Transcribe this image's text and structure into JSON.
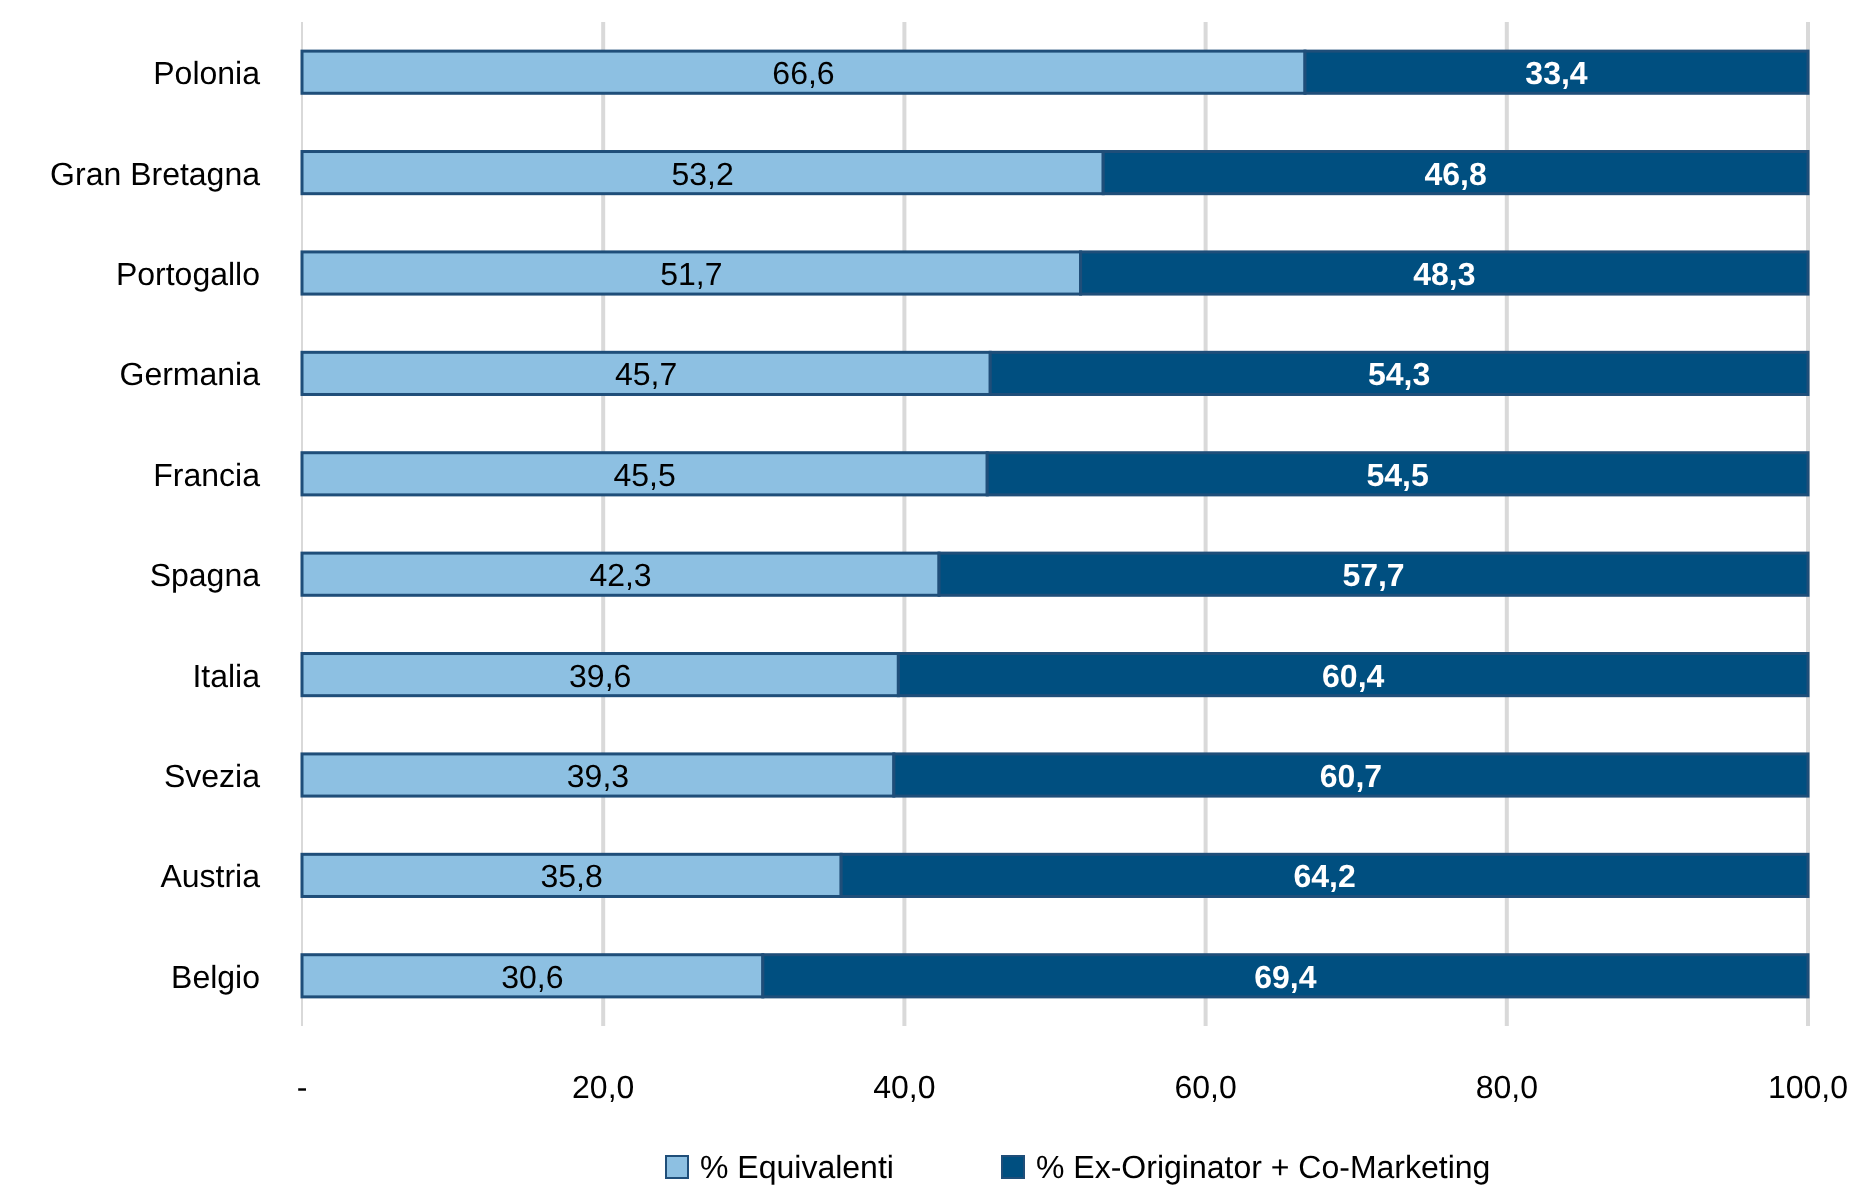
{
  "chart_data": {
    "type": "bar",
    "orientation": "horizontal",
    "stacked": true,
    "categories": [
      "Polonia",
      "Gran Bretagna",
      "Portogallo",
      "Germania",
      "Francia",
      "Spagna",
      "Italia",
      "Svezia",
      "Austria",
      "Belgio"
    ],
    "series": [
      {
        "name": "% Equivalenti",
        "color": "#8dc0e2",
        "values": [
          66.6,
          53.2,
          51.7,
          45.7,
          45.5,
          42.3,
          39.6,
          39.3,
          35.8,
          30.6
        ],
        "value_labels": [
          "66,6",
          "53,2",
          "51,7",
          "45,7",
          "45,5",
          "42,3",
          "39,6",
          "39,3",
          "35,8",
          "30,6"
        ]
      },
      {
        "name": "% Ex-Originator + Co-Marketing",
        "color": "#004f80",
        "values": [
          33.4,
          46.8,
          48.3,
          54.3,
          54.5,
          57.7,
          60.4,
          60.7,
          64.2,
          69.4
        ],
        "value_labels": [
          "33,4",
          "46,8",
          "48,3",
          "54,3",
          "54,5",
          "57,7",
          "60,4",
          "60,7",
          "64,2",
          "69,4"
        ]
      }
    ],
    "xlim": [
      0,
      100
    ],
    "xticks": [
      {
        "value": 0,
        "label": "-"
      },
      {
        "value": 20,
        "label": "20,0"
      },
      {
        "value": 40,
        "label": "40,0"
      },
      {
        "value": 60,
        "label": "60,0"
      },
      {
        "value": 80,
        "label": "80,0"
      },
      {
        "value": 100,
        "label": "100,0"
      }
    ],
    "grid": "x",
    "legend": "bottom"
  }
}
